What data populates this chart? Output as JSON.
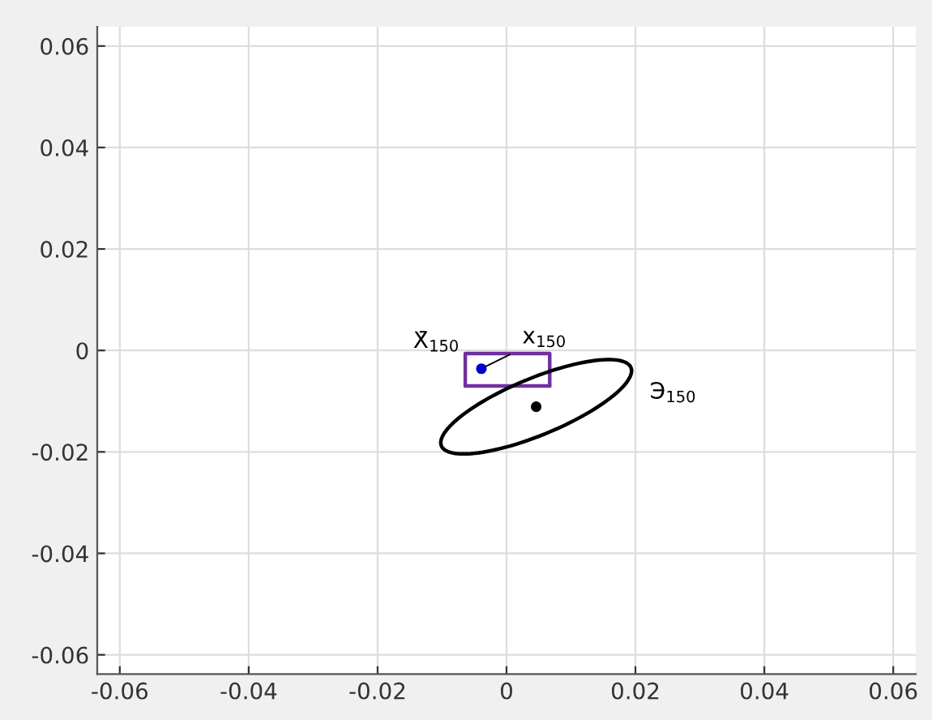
{
  "chart_data": {
    "type": "line",
    "xlim": [
      -0.0635,
      0.0635
    ],
    "ylim": [
      -0.0638,
      0.0638
    ],
    "xticks": [
      -0.06,
      -0.04,
      -0.02,
      0,
      0.02,
      0.04,
      0.06
    ],
    "yticks": [
      -0.06,
      -0.04,
      -0.02,
      0,
      0.02,
      0.04,
      0.06
    ],
    "grid": true,
    "series": [
      {
        "color": "#7030a0",
        "x": [
          -0.0064,
          -0.0064,
          0.0067,
          0.0067
        ],
        "values": [
          -0.007,
          -0.0006,
          -0.0006,
          -0.007
        ]
      },
      {
        "color": "#7030a0",
        "x": [
          -0.0064,
          0.0067
        ],
        "values": [
          -0.007,
          -0.007
        ]
      },
      {
        "type": "scatter",
        "color": "#0000cc",
        "x": [
          -0.0039
        ],
        "values": [
          -0.0036
        ]
      },
      {
        "type": "scatter",
        "color": "#000000",
        "x": [
          0.0046
        ],
        "values": [
          -0.0111
        ]
      }
    ],
    "annotations": [
      {
        "text": "X̄$_{150}$",
        "x": -0.0039,
        "y": -0.0036
      },
      {
        "text": "x$_{150}$",
        "x": -0.0039,
        "y": -0.0036
      },
      "Э$_{150}$"
    ]
  }
}
